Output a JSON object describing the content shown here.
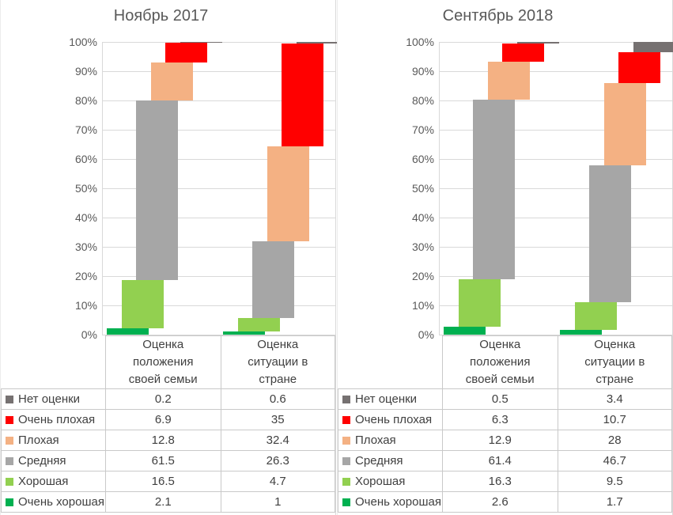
{
  "chart_data": [
    {
      "type": "bar",
      "bar_style": "stacked-cascade",
      "stacked": true,
      "title": "Ноябрь 2017",
      "categories": [
        "Оценка положения своей семьи",
        "Оценка ситуации в стране"
      ],
      "categories_lines": [
        [
          "Оценка",
          "положения",
          "своей семьи"
        ],
        [
          "Оценка",
          "ситуации в",
          "стране"
        ]
      ],
      "series": [
        {
          "name": "Нет оценки",
          "color": "#767171",
          "values": [
            0.2,
            0.6
          ]
        },
        {
          "name": "Очень плохая",
          "color": "#FF0000",
          "values": [
            6.9,
            35
          ]
        },
        {
          "name": "Плохая",
          "color": "#F4B183",
          "values": [
            12.8,
            32.4
          ]
        },
        {
          "name": "Средняя",
          "color": "#A6A6A6",
          "values": [
            61.5,
            26.3
          ]
        },
        {
          "name": "Хорошая",
          "color": "#92D050",
          "values": [
            16.5,
            4.7
          ]
        },
        {
          "name": "Очень хорошая",
          "color": "#00B050",
          "values": [
            2.1,
            1
          ]
        }
      ],
      "stack_order_bottom_to_top": [
        "Очень хорошая",
        "Хорошая",
        "Средняя",
        "Плохая",
        "Очень плохая",
        "Нет оценки"
      ],
      "ylabel": "",
      "ylim": [
        0,
        100
      ],
      "y_ticks": [
        "0%",
        "10%",
        "20%",
        "30%",
        "40%",
        "50%",
        "60%",
        "70%",
        "80%",
        "90%",
        "100%"
      ],
      "grid": true,
      "legend_position": "data-table-below"
    },
    {
      "type": "bar",
      "bar_style": "stacked-cascade",
      "stacked": true,
      "title": "Сентябрь 2018",
      "categories": [
        "Оценка положения своей семьи",
        "Оценка ситуации в стране"
      ],
      "categories_lines": [
        [
          "Оценка",
          "положения",
          "своей семьи"
        ],
        [
          "Оценка",
          "ситуации в",
          "стране"
        ]
      ],
      "series": [
        {
          "name": "Нет оценки",
          "color": "#767171",
          "values": [
            0.5,
            3.4
          ]
        },
        {
          "name": "Очень плохая",
          "color": "#FF0000",
          "values": [
            6.3,
            10.7
          ]
        },
        {
          "name": "Плохая",
          "color": "#F4B183",
          "values": [
            12.9,
            28
          ]
        },
        {
          "name": "Средняя",
          "color": "#A6A6A6",
          "values": [
            61.4,
            46.7
          ]
        },
        {
          "name": "Хорошая",
          "color": "#92D050",
          "values": [
            16.3,
            9.5
          ]
        },
        {
          "name": "Очень хорошая",
          "color": "#00B050",
          "values": [
            2.6,
            1.7
          ]
        }
      ],
      "stack_order_bottom_to_top": [
        "Очень хорошая",
        "Хорошая",
        "Средняя",
        "Плохая",
        "Очень плохая",
        "Нет оценки"
      ],
      "ylabel": "",
      "ylim": [
        0,
        100
      ],
      "y_ticks": [
        "0%",
        "10%",
        "20%",
        "30%",
        "40%",
        "50%",
        "60%",
        "70%",
        "80%",
        "90%",
        "100%"
      ],
      "grid": true,
      "legend_position": "data-table-below"
    }
  ],
  "colors": {
    "title_text": "#595959",
    "axis_text": "#595959",
    "table_text": "#404040",
    "gridline": "#d9d9d9",
    "table_border": "#c9c9c9"
  }
}
